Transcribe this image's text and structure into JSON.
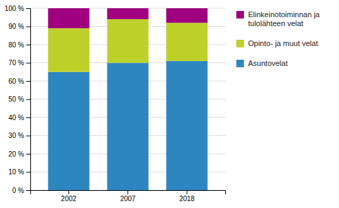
{
  "chart_data": {
    "type": "bar",
    "stacked": true,
    "categories": [
      "2002",
      "2007",
      "2018"
    ],
    "series": [
      {
        "name": "Asuntovelat",
        "color": "#2E86C1",
        "values": [
          65,
          70,
          71
        ]
      },
      {
        "name": "Opinto- ja muut velat",
        "color": "#BDD12A",
        "values": [
          24,
          24,
          21
        ]
      },
      {
        "name": "Elinkeinotoiminnan ja\ntulolähteen velat",
        "color": "#A0007F",
        "values": [
          11,
          6,
          8
        ]
      }
    ],
    "ylim": [
      0,
      100
    ],
    "yticks": [
      {
        "value": 0,
        "label": "0 %"
      },
      {
        "value": 10,
        "label": "10 %"
      },
      {
        "value": 20,
        "label": "20 %"
      },
      {
        "value": 30,
        "label": "30 %"
      },
      {
        "value": 40,
        "label": "40 %"
      },
      {
        "value": 50,
        "label": "50 %"
      },
      {
        "value": 60,
        "label": "60 %"
      },
      {
        "value": 70,
        "label": "70 %"
      },
      {
        "value": 80,
        "label": "80 %"
      },
      {
        "value": 90,
        "label": "90 %"
      },
      {
        "value": 100,
        "label": "100 %"
      }
    ],
    "grid": true,
    "legend": "right"
  }
}
